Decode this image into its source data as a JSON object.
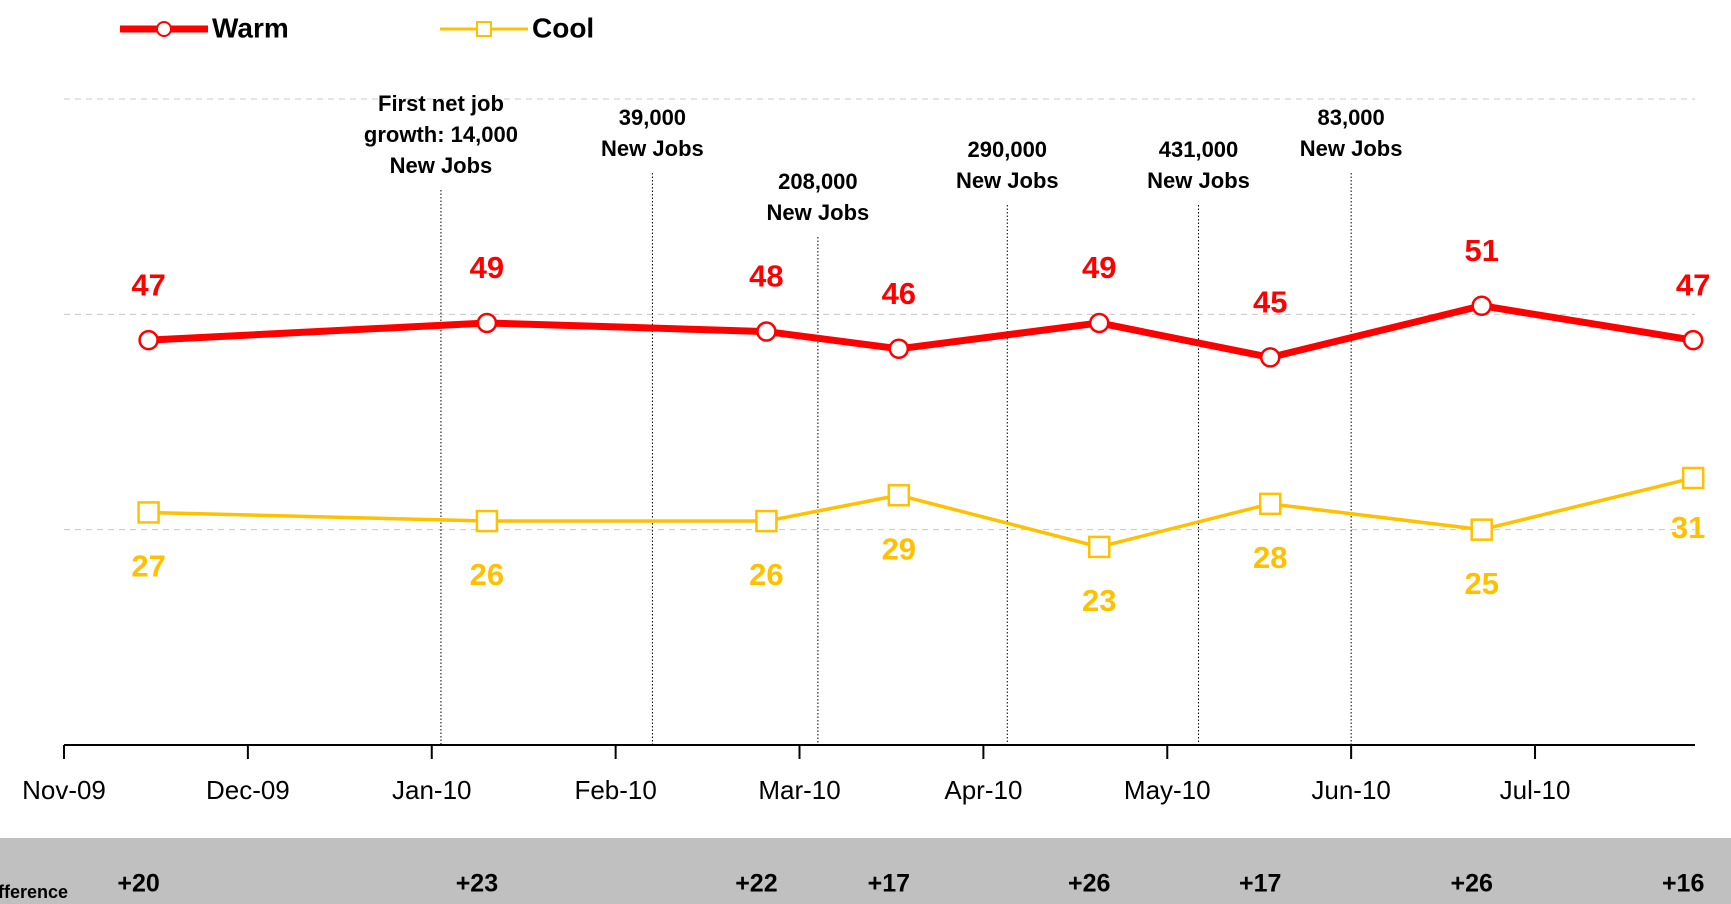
{
  "chart_data": {
    "type": "line",
    "x": [
      0.46,
      2.3,
      3.82,
      4.54,
      5.63,
      6.56,
      7.71,
      8.86
    ],
    "xlim": [
      0,
      8.87
    ],
    "xticks": [
      {
        "value": 0,
        "label": "Nov-09"
      },
      {
        "value": 1,
        "label": "Dec-09"
      },
      {
        "value": 2,
        "label": "Jan-10"
      },
      {
        "value": 3,
        "label": "Feb-10"
      },
      {
        "value": 4,
        "label": "Mar-10"
      },
      {
        "value": 5,
        "label": "Apr-10"
      },
      {
        "value": 6,
        "label": "May-10"
      },
      {
        "value": 7,
        "label": "Jun-10"
      },
      {
        "value": 8,
        "label": "Jul-10"
      }
    ],
    "ylim": [
      0,
      75
    ],
    "yticks": [
      0,
      25,
      50,
      75
    ],
    "grid": true,
    "series": [
      {
        "name": "Warm",
        "color": "#ff0000",
        "marker": "circle",
        "values": [
          47,
          49,
          48,
          46,
          49,
          45,
          51,
          47
        ]
      },
      {
        "name": "Cool",
        "color": "#ffc000",
        "marker": "square",
        "values": [
          27,
          26,
          26,
          29,
          23,
          28,
          25,
          31
        ]
      }
    ],
    "annotations": [
      {
        "x": 2.05,
        "lines": [
          "First net job",
          "growth: 14,000",
          "New Jobs"
        ]
      },
      {
        "x": 3.2,
        "lines": [
          "39,000",
          "New Jobs"
        ]
      },
      {
        "x": 4.1,
        "lines": [
          "208,000",
          "New Jobs"
        ]
      },
      {
        "x": 5.13,
        "lines": [
          "290,000",
          "New Jobs"
        ]
      },
      {
        "x": 6.17,
        "lines": [
          "431,000",
          "New Jobs"
        ]
      },
      {
        "x": 7.0,
        "lines": [
          "83,000",
          "New Jobs"
        ]
      }
    ],
    "difference": {
      "label": "Difference",
      "values": [
        20,
        23,
        22,
        17,
        26,
        17,
        26,
        16
      ],
      "value_labels": [
        "+20",
        "+23",
        "+22",
        "+17",
        "+26",
        "+17",
        "+26",
        "+16"
      ]
    }
  }
}
